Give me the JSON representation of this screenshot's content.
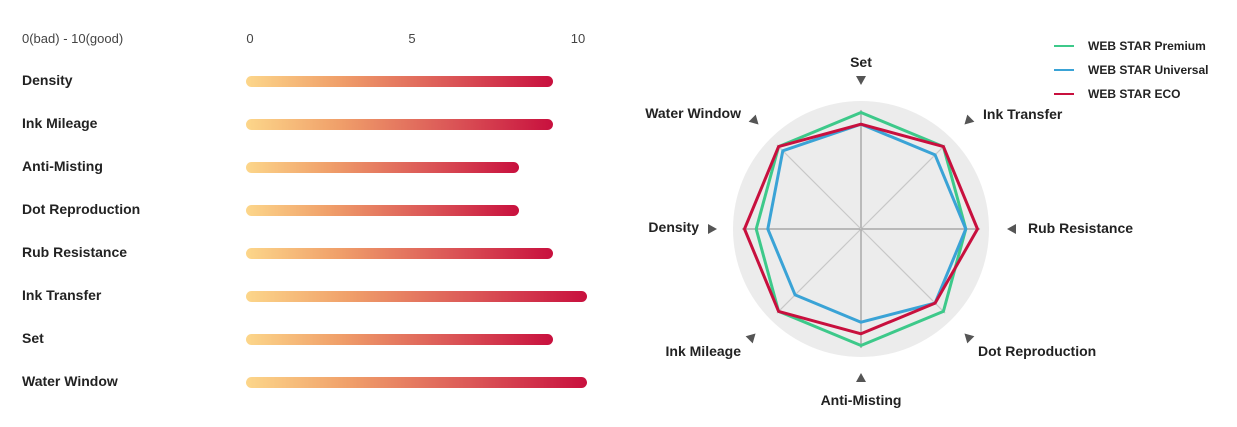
{
  "scale": {
    "caption": "0(bad) - 10(good)",
    "ticks": [
      {
        "label": "0",
        "value": 0
      },
      {
        "label": "5",
        "value": 5
      },
      {
        "label": "10",
        "value": 10
      }
    ]
  },
  "chart_data": [
    {
      "type": "bar",
      "orientation": "horizontal",
      "xlim": [
        0,
        10
      ],
      "categories": [
        "Density",
        "Ink Mileage",
        "Anti-Misting",
        "Dot Reproduction",
        "Rub Resistance",
        "Ink Transfer",
        "Set",
        "Water Window"
      ],
      "values": [
        9,
        9,
        8,
        8,
        9,
        10,
        9,
        10
      ],
      "gradient_colors": [
        "#fcd68a",
        "#f0a06a",
        "#dc5a58",
        "#c8103e"
      ]
    },
    {
      "type": "radar",
      "range": [
        0,
        10
      ],
      "axes": [
        "Set",
        "Ink Transfer",
        "Rub Resistance",
        "Dot Reproduction",
        "Anti-Misting",
        "Ink Mileage",
        "Density",
        "Water Window"
      ],
      "series": [
        {
          "name": "WEB STAR Premium",
          "color": "#3dc98a",
          "values": [
            10,
            10,
            9,
            10,
            10,
            10,
            9,
            10
          ]
        },
        {
          "name": "WEB STAR Universal",
          "color": "#3aa3d6",
          "values": [
            9,
            9,
            9,
            9,
            8,
            8,
            8,
            9.5
          ]
        },
        {
          "name": "WEB STAR ECO",
          "color": "#c8103e",
          "values": [
            9,
            10,
            10,
            9,
            9,
            10,
            10,
            10
          ]
        }
      ],
      "legend_position": "top-right"
    }
  ]
}
